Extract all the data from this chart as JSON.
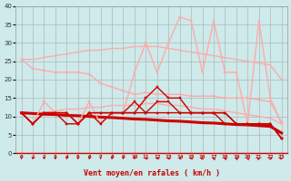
{
  "x": [
    0,
    1,
    2,
    3,
    4,
    5,
    6,
    7,
    8,
    9,
    10,
    11,
    12,
    13,
    14,
    15,
    16,
    17,
    18,
    19,
    20,
    21,
    22,
    23
  ],
  "bg_color": "#ceeaea",
  "grid_color": "#aaaaaa",
  "xlabel": "Vent moyen/en rafales ( km/h )",
  "xlabel_color": "#cc0000",
  "ylim": [
    0,
    40
  ],
  "yticks": [
    0,
    5,
    10,
    15,
    20,
    25,
    30,
    35,
    40
  ],
  "line_light_upper_trend": {
    "y": [
      25.5,
      25.5,
      26,
      26.5,
      27,
      27.5,
      28,
      28,
      28.5,
      28.5,
      29,
      29,
      29,
      28.5,
      28,
      27.5,
      27,
      26.5,
      26,
      25.5,
      25,
      24.5,
      24,
      20
    ],
    "color": "#ffaaaa",
    "lw": 1.0,
    "marker": null
  },
  "line_light_lower_trend": {
    "y": [
      10.5,
      11,
      11,
      11.5,
      12,
      12,
      12.5,
      12.5,
      13,
      13,
      13,
      13.5,
      13.5,
      13,
      13,
      12.5,
      12,
      12,
      11.5,
      11,
      10.5,
      10,
      9.5,
      8
    ],
    "color": "#ffaaaa",
    "lw": 1.0,
    "marker": null
  },
  "line_light_marker1": {
    "y": [
      25.5,
      23,
      22.5,
      22,
      22,
      22,
      21.5,
      19,
      18,
      17,
      16,
      16.5,
      16,
      16,
      16,
      15.5,
      15.5,
      15.5,
      15,
      15,
      15,
      14.5,
      14,
      8.5
    ],
    "color": "#ffaaaa",
    "lw": 1.0,
    "marker": "s",
    "ms": 2.0
  },
  "line_light_peaks": {
    "y": [
      11,
      8,
      14,
      11,
      11,
      8,
      14,
      8,
      11,
      11,
      22,
      30,
      22,
      30,
      37,
      36,
      22,
      36,
      22,
      22,
      8,
      36,
      15,
      8
    ],
    "color": "#ffaaaa",
    "lw": 1.0,
    "marker": "s",
    "ms": 2.0
  },
  "line_dark_trend": {
    "y": [
      11.0,
      10.8,
      10.6,
      10.5,
      10.3,
      10.2,
      10.0,
      9.8,
      9.7,
      9.5,
      9.3,
      9.2,
      9.0,
      8.8,
      8.7,
      8.5,
      8.3,
      8.2,
      8.0,
      7.8,
      7.7,
      7.5,
      7.3,
      5.5
    ],
    "color": "#cc0000",
    "lw": 2.2,
    "marker": null
  },
  "line_dark1": {
    "y": [
      11,
      8,
      11,
      11,
      11,
      8,
      11,
      8,
      11,
      11,
      11,
      11,
      11,
      11,
      11,
      11,
      11,
      11,
      11,
      8,
      8,
      8,
      8,
      4
    ],
    "color": "#cc0000",
    "lw": 1.0,
    "marker": "s",
    "ms": 2.0
  },
  "line_dark2": {
    "y": [
      11,
      8,
      11,
      11,
      8,
      8,
      11,
      11,
      11,
      11,
      11,
      15,
      18,
      15,
      15,
      11,
      11,
      11,
      8,
      8,
      8,
      8,
      8,
      4
    ],
    "color": "#cc0000",
    "lw": 1.0,
    "marker": "s",
    "ms": 2.0
  },
  "line_dark3": {
    "y": [
      11,
      8,
      11,
      11,
      11,
      8,
      11,
      11,
      11,
      11,
      14,
      11,
      14,
      14,
      11,
      11,
      11,
      11,
      11,
      8,
      8,
      8,
      8,
      4
    ],
    "color": "#cc0000",
    "lw": 1.0,
    "marker": "s",
    "ms": 2.0
  },
  "arrow_color": "#cc0000",
  "wind_dirs": [
    180,
    180,
    180,
    180,
    180,
    180,
    180,
    180,
    180,
    180,
    180,
    225,
    225,
    225,
    225,
    225,
    270,
    315,
    315,
    315,
    315,
    45,
    90,
    135
  ]
}
